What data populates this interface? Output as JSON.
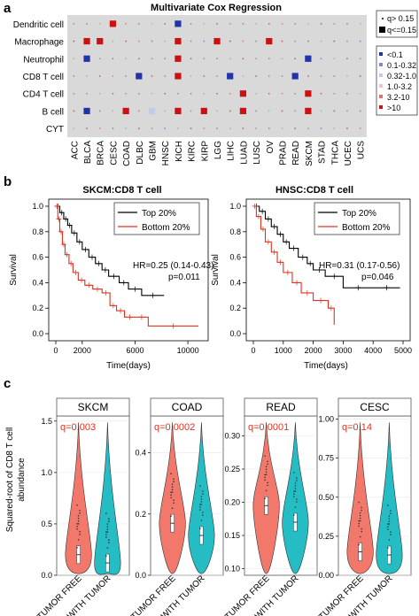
{
  "panels": {
    "a": {
      "letter": "a",
      "title": "Multivariate Cox Regression",
      "rows": [
        "Dendritic cell",
        "Macrophage",
        "Neutrophil",
        "CD8 T cell",
        "CD4 T cell",
        "B cell",
        "CYT"
      ],
      "cols": [
        "ACC",
        "BLCA",
        "BRCA",
        "CESC",
        "COAD",
        "DLBC",
        "GBM",
        "HNSC",
        "KICH",
        "KIRC",
        "KIRP",
        "LGG",
        "LIHC",
        "LUAD",
        "LUSC",
        "OV",
        "PRAD",
        "READ",
        "SKCM",
        "STAD",
        "THCA",
        "UCEC",
        "UCS"
      ],
      "legend_size": [
        {
          "label": "q> 0.15"
        },
        {
          "label": "q<=0.15"
        }
      ],
      "legend_color": [
        {
          "label": "<0.1",
          "color": "#2233aa"
        },
        {
          "label": "0.1-0.32",
          "color": "#7f88cc"
        },
        {
          "label": "0.32-1.0",
          "color": "#c5cae8"
        },
        {
          "label": "1.0-3.2",
          "color": "#eac5c5"
        },
        {
          "label": "3.2-10",
          "color": "#e07070"
        },
        {
          "label": ">10",
          "color": "#cc1111"
        }
      ],
      "big_cells": [
        {
          "row": 0,
          "col": 3,
          "color": "#cc1111"
        },
        {
          "row": 0,
          "col": 8,
          "color": "#2233aa"
        },
        {
          "row": 1,
          "col": 1,
          "color": "#cc1111"
        },
        {
          "row": 1,
          "col": 2,
          "color": "#cc1111"
        },
        {
          "row": 1,
          "col": 8,
          "color": "#cc1111"
        },
        {
          "row": 1,
          "col": 11,
          "color": "#cc1111"
        },
        {
          "row": 1,
          "col": 15,
          "color": "#cc1111"
        },
        {
          "row": 2,
          "col": 1,
          "color": "#2233aa"
        },
        {
          "row": 2,
          "col": 8,
          "color": "#cc1111"
        },
        {
          "row": 2,
          "col": 18,
          "color": "#2233aa"
        },
        {
          "row": 3,
          "col": 5,
          "color": "#2233aa"
        },
        {
          "row": 3,
          "col": 8,
          "color": "#cc1111"
        },
        {
          "row": 3,
          "col": 12,
          "color": "#2233aa"
        },
        {
          "row": 3,
          "col": 17,
          "color": "#2233aa"
        },
        {
          "row": 4,
          "col": 13,
          "color": "#cc1111"
        },
        {
          "row": 4,
          "col": 18,
          "color": "#cc1111"
        },
        {
          "row": 5,
          "col": 1,
          "color": "#2233aa"
        },
        {
          "row": 5,
          "col": 4,
          "color": "#cc1111"
        },
        {
          "row": 5,
          "col": 6,
          "color": "#c5cae8"
        },
        {
          "row": 5,
          "col": 8,
          "color": "#cc1111"
        },
        {
          "row": 5,
          "col": 10,
          "color": "#cc1111"
        },
        {
          "row": 5,
          "col": 13,
          "color": "#cc1111"
        },
        {
          "row": 5,
          "col": 18,
          "color": "#cc1111"
        }
      ]
    },
    "b": {
      "letter": "b",
      "ylabel": "Survival",
      "xlabel": "Time(days)",
      "yticks": [
        "0.0",
        "0.2",
        "0.4",
        "0.6",
        "0.8",
        "1.0"
      ],
      "plots": [
        {
          "title": "SKCM:CD8 T cell",
          "xticks": [
            "0",
            "2000",
            "6000",
            "10000"
          ],
          "xmax": 11000,
          "legend": [
            "Top 20%",
            "Bottom 20%"
          ],
          "hr": "HR=0.25 (0.14-0.43)",
          "p": "p=0.011"
        },
        {
          "title": "HNSC:CD8 T cell",
          "xticks": [
            "0",
            "1000",
            "2000",
            "3000",
            "4000",
            "5000"
          ],
          "xmax": 5000,
          "legend": [
            "Top 20%",
            "Bottom 20%"
          ],
          "hr": "HR=0.31 (0.17-0.56)",
          "p": "p=0.046"
        }
      ]
    },
    "c": {
      "letter": "c",
      "ylabel_line1": "Squared-root of CD8 T cell",
      "ylabel_line2": "abundance",
      "groups": [
        "TUMOR FREE",
        "WITH TUMOR"
      ],
      "facets": [
        {
          "title": "SKCM",
          "q": "q=0.003",
          "yticks": [
            "0.0",
            "0.5",
            "1.0",
            "1.5"
          ]
        },
        {
          "title": "COAD",
          "q": "q=0.0002",
          "yticks": [
            "0.0",
            "0.2",
            "0.4"
          ]
        },
        {
          "title": "READ",
          "q": "q=0.0001",
          "yticks": [
            "0.10",
            "0.15",
            "0.20",
            "0.25",
            "0.30"
          ]
        },
        {
          "title": "CESC",
          "q": "q=0.14",
          "yticks": [
            "0.00",
            "0.25",
            "0.50",
            "0.75",
            "1.00"
          ]
        }
      ]
    }
  },
  "chart_data": [
    {
      "type": "heatmap",
      "title": "Multivariate Cox Regression",
      "rows": [
        "Dendritic cell",
        "Macrophage",
        "Neutrophil",
        "CD8 T cell",
        "CD4 T cell",
        "B cell",
        "CYT"
      ],
      "cols": [
        "ACC",
        "BLCA",
        "BRCA",
        "CESC",
        "COAD",
        "DLBC",
        "GBM",
        "HNSC",
        "KICH",
        "KIRC",
        "KIRP",
        "LGG",
        "LIHC",
        "LUAD",
        "LUSC",
        "OV",
        "PRAD",
        "READ",
        "SKCM",
        "STAD",
        "THCA",
        "UCEC",
        "UCS"
      ]
    },
    {
      "type": "line",
      "title": "SKCM:CD8 T cell",
      "xlabel": "Time(days)",
      "ylabel": "Survival",
      "xlim": [
        0,
        11000
      ],
      "ylim": [
        0,
        1
      ],
      "series": [
        {
          "name": "Top 20%",
          "color": "#000000",
          "x": [
            0,
            300,
            600,
            900,
            1200,
            1600,
            2000,
            2500,
            3000,
            3500,
            4000,
            4800,
            5500,
            6500,
            8200
          ],
          "y": [
            1.0,
            0.95,
            0.9,
            0.85,
            0.79,
            0.72,
            0.66,
            0.6,
            0.55,
            0.5,
            0.45,
            0.4,
            0.35,
            0.3,
            0.3
          ]
        },
        {
          "name": "Bottom 20%",
          "color": "#e0301e",
          "x": [
            0,
            150,
            300,
            500,
            700,
            1000,
            1300,
            1700,
            2200,
            2800,
            3500,
            4100,
            4600,
            5200,
            6000,
            7000,
            10800
          ],
          "y": [
            1.0,
            0.9,
            0.8,
            0.7,
            0.62,
            0.55,
            0.48,
            0.42,
            0.38,
            0.35,
            0.32,
            0.22,
            0.18,
            0.13,
            0.13,
            0.06,
            0.06
          ]
        }
      ]
    },
    {
      "type": "line",
      "title": "HNSC:CD8 T cell",
      "xlabel": "Time(days)",
      "ylabel": "Survival",
      "xlim": [
        0,
        5000
      ],
      "ylim": [
        0,
        1
      ],
      "series": [
        {
          "name": "Top 20%",
          "color": "#000000",
          "x": [
            0,
            200,
            400,
            600,
            800,
            1000,
            1200,
            1500,
            1800,
            2000,
            2400,
            3000,
            4000,
            4900
          ],
          "y": [
            1.0,
            0.96,
            0.9,
            0.84,
            0.78,
            0.72,
            0.67,
            0.6,
            0.55,
            0.5,
            0.45,
            0.36,
            0.36,
            0.36
          ]
        },
        {
          "name": "Bottom 20%",
          "color": "#e0301e",
          "x": [
            0,
            100,
            250,
            400,
            600,
            800,
            1000,
            1300,
            1600,
            2000,
            2500,
            2700
          ],
          "y": [
            1.0,
            0.92,
            0.82,
            0.72,
            0.64,
            0.56,
            0.48,
            0.4,
            0.32,
            0.26,
            0.2,
            0.07
          ]
        }
      ]
    },
    {
      "type": "violin",
      "title": "SKCM",
      "categories": [
        "TUMOR FREE",
        "WITH TUMOR"
      ],
      "ylim": [
        0,
        1.55
      ],
      "median": [
        0.2,
        0.12
      ]
    },
    {
      "type": "violin",
      "title": "COAD",
      "categories": [
        "TUMOR FREE",
        "WITH TUMOR"
      ],
      "ylim": [
        0,
        0.52
      ],
      "median": [
        0.17,
        0.13
      ]
    },
    {
      "type": "violin",
      "title": "READ",
      "categories": [
        "TUMOR FREE",
        "WITH TUMOR"
      ],
      "ylim": [
        0.09,
        0.33
      ],
      "median": [
        0.195,
        0.17
      ]
    },
    {
      "type": "violin",
      "title": "CESC",
      "categories": [
        "TUMOR FREE",
        "WITH TUMOR"
      ],
      "ylim": [
        0,
        1.02
      ],
      "median": [
        0.15,
        0.13
      ]
    }
  ]
}
